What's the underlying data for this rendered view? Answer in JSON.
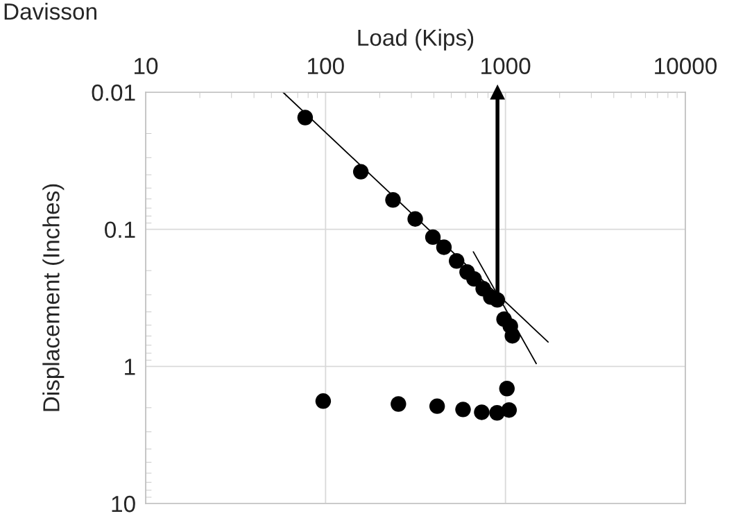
{
  "chart_data": {
    "type": "scatter",
    "title": "Davisson",
    "xlabel": "Load (Kips)",
    "ylabel": "Displacement (Inches)",
    "xlim": [
      10,
      10000
    ],
    "xticks": [
      10,
      100,
      1000,
      10000
    ],
    "ylim": [
      10,
      0.01
    ],
    "yticks": [
      0.01,
      0.1,
      1,
      10
    ],
    "log": "xy",
    "grid": true,
    "marker": "circle",
    "series": [
      {
        "color": "#000000",
        "x": [
          77,
          157,
          237,
          315,
          395,
          455,
          535,
          612,
          669,
          752,
          829,
          901,
          982,
          1064,
          1093,
          1019,
          1047,
          898,
          738,
          581,
          417,
          254,
          97
        ],
        "values": [
          0.0153,
          0.038,
          0.061,
          0.084,
          0.114,
          0.135,
          0.17,
          0.205,
          0.23,
          0.271,
          0.312,
          0.327,
          0.452,
          0.508,
          0.598,
          1.45,
          2.08,
          2.18,
          2.16,
          2.06,
          1.95,
          1.88,
          1.79
        ]
      },
      {
        "type": "line",
        "color": "#000000",
        "marker": "none",
        "x": [
          58,
          1726
        ],
        "values": [
          0.01,
          0.664
        ]
      },
      {
        "type": "line",
        "color": "#000000",
        "marker": "none",
        "x": [
          663,
          1483
        ],
        "values": [
          0.146,
          0.953
        ]
      },
      {
        "type": "line",
        "color": "#000000",
        "marker": "triangle",
        "x": [
          903,
          903
        ],
        "values": [
          0.3,
          0.01
        ]
      }
    ]
  }
}
